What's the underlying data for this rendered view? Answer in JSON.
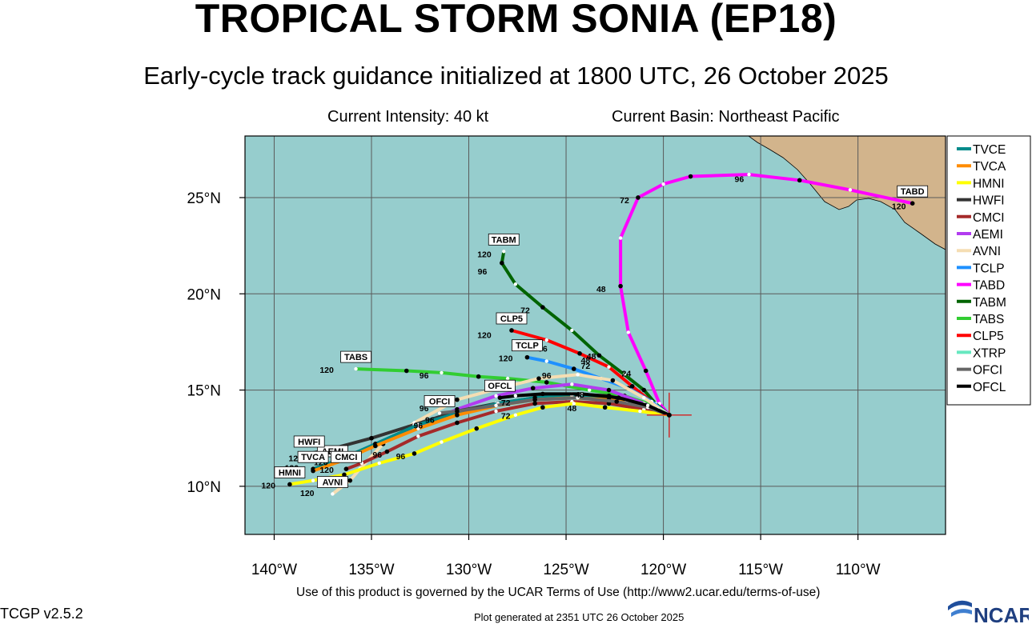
{
  "header": {
    "title": "TROPICAL STORM SONIA (EP18)",
    "subtitle": "Early-cycle track guidance initialized at 1800 UTC, 26 October 2025",
    "intensity": "Current Intensity: 40 kt",
    "basin": "Current Basin: Northeast Pacific"
  },
  "footer": {
    "terms": "Use of this product is governed by the UCAR Terms of Use (http://www2.ucar.edu/terms-of-use)",
    "version": "TCGP v2.5.2",
    "generated": "Plot generated at 2351 UTC   26 October 2025",
    "logo_text": "NCAR"
  },
  "map": {
    "lon_range": [
      -141.5,
      -105.5
    ],
    "lat_range": [
      7.5,
      28.2
    ],
    "lon_ticks": [
      -140,
      -135,
      -130,
      -125,
      -120,
      -115,
      -110
    ],
    "lon_tick_labels": [
      "140°W",
      "135°W",
      "130°W",
      "125°W",
      "120°W",
      "115°W",
      "110°W"
    ],
    "lat_ticks": [
      10,
      15,
      20,
      25
    ],
    "lat_tick_labels": [
      "10°N",
      "15°N",
      "20°N",
      "25°N"
    ],
    "ocean_color": "#96cdcd",
    "land_color": "#d2b48c",
    "current_position": [
      -119.7,
      13.7
    ]
  },
  "legend": [
    {
      "name": "TVCE",
      "color": "#008b8b"
    },
    {
      "name": "TVCA",
      "color": "#ff8c00"
    },
    {
      "name": "HMNI",
      "color": "#ffff00"
    },
    {
      "name": "HWFI",
      "color": "#333333"
    },
    {
      "name": "CMCI",
      "color": "#a52a2a"
    },
    {
      "name": "AEMI",
      "color": "#b23cf0"
    },
    {
      "name": "AVNI",
      "color": "#f5deb3"
    },
    {
      "name": "TCLP",
      "color": "#1e90ff"
    },
    {
      "name": "TABD",
      "color": "#ff00ff"
    },
    {
      "name": "TABM",
      "color": "#006400"
    },
    {
      "name": "TABS",
      "color": "#32cd32"
    },
    {
      "name": "CLP5",
      "color": "#ff0000"
    },
    {
      "name": "XTRP",
      "color": "#66e8c0"
    },
    {
      "name": "OFCI",
      "color": "#666666"
    },
    {
      "name": "OFCL",
      "color": "#000000"
    }
  ],
  "chart_data": {
    "type": "track",
    "x_label": "longitude",
    "y_label": "latitude",
    "series": [
      {
        "name": "TABD",
        "color": "#ff00ff",
        "tag": "TABD",
        "points": [
          [
            -119.7,
            13.7
          ],
          [
            -120.2,
            14.3
          ],
          [
            -120.9,
            16.0
          ],
          [
            -121.8,
            18.0
          ],
          [
            -122.2,
            20.4
          ],
          [
            -122.2,
            22.9
          ],
          [
            -121.3,
            25.0
          ],
          [
            -120.0,
            25.7
          ],
          [
            -118.6,
            26.1
          ],
          [
            -115.6,
            26.2
          ],
          [
            -113.0,
            25.9
          ],
          [
            -110.4,
            25.4
          ],
          [
            -107.2,
            24.7
          ]
        ],
        "tau_labels": [
          [
            "24",
            -121.9,
            15.7
          ],
          [
            "48",
            -123.2,
            20.1
          ],
          [
            "72",
            -122.0,
            24.7
          ],
          [
            "96",
            -116.1,
            25.8
          ],
          [
            "120",
            -107.9,
            24.4
          ]
        ]
      },
      {
        "name": "TABM",
        "color": "#006400",
        "tag": "TABM",
        "points": [
          [
            -119.7,
            13.7
          ],
          [
            -120.4,
            14.3
          ],
          [
            -121.0,
            15.0
          ],
          [
            -122.0,
            15.8
          ],
          [
            -123.3,
            16.8
          ],
          [
            -124.7,
            18.1
          ],
          [
            -126.2,
            19.3
          ],
          [
            -127.6,
            20.5
          ],
          [
            -128.3,
            21.6
          ],
          [
            -128.2,
            22.2
          ]
        ],
        "tau_labels": [
          [
            "48",
            -124.0,
            16.4
          ],
          [
            "72",
            -127.1,
            19.0
          ],
          [
            "96",
            -129.3,
            21.0
          ],
          [
            "120",
            -129.2,
            21.9
          ]
        ]
      },
      {
        "name": "TABS",
        "color": "#32cd32",
        "tag": "TABS",
        "points": [
          [
            -119.7,
            13.7
          ],
          [
            -120.5,
            14.2
          ],
          [
            -122.0,
            14.7
          ],
          [
            -123.8,
            15.0
          ],
          [
            -126.0,
            15.4
          ],
          [
            -128.0,
            15.6
          ],
          [
            -129.5,
            15.7
          ],
          [
            -131.4,
            15.9
          ],
          [
            -133.2,
            16.0
          ],
          [
            -135.8,
            16.1
          ]
        ],
        "tau_labels": [
          [
            "96",
            -132.3,
            15.6
          ],
          [
            "120",
            -137.3,
            15.9
          ]
        ]
      },
      {
        "name": "CLP5",
        "color": "#ff0000",
        "tag": "CLP5",
        "points": [
          [
            -119.7,
            13.7
          ],
          [
            -120.5,
            14.3
          ],
          [
            -121.6,
            15.2
          ],
          [
            -122.8,
            16.2
          ],
          [
            -124.3,
            16.9
          ],
          [
            -126.0,
            17.6
          ],
          [
            -127.8,
            18.1
          ]
        ],
        "tau_labels": [
          [
            "48",
            -123.7,
            16.6
          ],
          [
            "96",
            -126.2,
            17.0
          ],
          [
            "120",
            -129.2,
            17.7
          ]
        ]
      },
      {
        "name": "TCLP",
        "color": "#1e90ff",
        "tag": "TCLP",
        "points": [
          [
            -119.7,
            13.7
          ],
          [
            -120.6,
            14.4
          ],
          [
            -121.8,
            15.1
          ],
          [
            -123.2,
            15.6
          ],
          [
            -124.6,
            16.1
          ],
          [
            -126.0,
            16.5
          ],
          [
            -127.0,
            16.7
          ]
        ],
        "tau_labels": [
          [
            "72",
            -124.0,
            16.1
          ],
          [
            "120",
            -128.1,
            16.5
          ]
        ]
      },
      {
        "name": "AVNI",
        "color": "#f5deb3",
        "tag": "AVNI",
        "points": [
          [
            -119.7,
            13.7
          ],
          [
            -121.0,
            14.6
          ],
          [
            -122.6,
            15.5
          ],
          [
            -124.4,
            15.8
          ],
          [
            -126.4,
            15.6
          ],
          [
            -128.4,
            15.1
          ],
          [
            -130.6,
            14.5
          ],
          [
            -132.8,
            13.3
          ],
          [
            -134.4,
            12.2
          ],
          [
            -135.6,
            10.9
          ],
          [
            -136.1,
            10.3
          ],
          [
            -137.0,
            9.6
          ]
        ],
        "tau_labels": [
          [
            "96",
            -126.0,
            15.6
          ],
          [
            "120",
            -138.3,
            9.5
          ]
        ]
      },
      {
        "name": "AEMI",
        "color": "#b23cf0",
        "tag": "AEMI",
        "points": [
          [
            -119.7,
            13.7
          ],
          [
            -121.0,
            14.3
          ],
          [
            -122.8,
            15.0
          ],
          [
            -124.7,
            15.3
          ],
          [
            -126.7,
            15.1
          ],
          [
            -128.6,
            14.7
          ],
          [
            -130.6,
            14.0
          ],
          [
            -132.8,
            13.0
          ],
          [
            -134.8,
            12.2
          ],
          [
            -136.1,
            11.6
          ],
          [
            -137.0,
            11.2
          ]
        ],
        "tau_labels": [
          [
            "120",
            -137.6,
            11.1
          ]
        ]
      },
      {
        "name": "HWFI",
        "color": "#333333",
        "tag": "HWFI",
        "points": [
          [
            -119.7,
            13.7
          ],
          [
            -121.0,
            14.2
          ],
          [
            -122.8,
            14.7
          ],
          [
            -124.7,
            14.8
          ],
          [
            -126.6,
            14.6
          ],
          [
            -128.6,
            14.3
          ],
          [
            -130.6,
            13.9
          ],
          [
            -132.8,
            13.2
          ],
          [
            -135.0,
            12.5
          ],
          [
            -137.2,
            11.9
          ],
          [
            -138.2,
            11.7
          ]
        ],
        "tau_labels": [
          [
            "96",
            -132.6,
            13.0
          ],
          [
            "120",
            -138.9,
            11.3
          ]
        ]
      },
      {
        "name": "TVCE",
        "color": "#008b8b",
        "tag": "TVCA",
        "points": [
          [
            -119.7,
            13.7
          ],
          [
            -121.0,
            14.2
          ],
          [
            -122.8,
            14.5
          ],
          [
            -124.7,
            14.7
          ],
          [
            -126.6,
            14.6
          ],
          [
            -128.5,
            14.3
          ],
          [
            -130.6,
            13.8
          ],
          [
            -132.6,
            13.2
          ],
          [
            -134.8,
            12.2
          ],
          [
            -136.6,
            11.4
          ],
          [
            -138.0,
            10.9
          ]
        ],
        "tau_labels": [
          [
            "96",
            -132.0,
            13.3
          ],
          [
            "120",
            -139.1,
            10.8
          ]
        ]
      },
      {
        "name": "TVCA",
        "color": "#ff8c00",
        "tag": "",
        "points": [
          [
            -119.7,
            13.7
          ],
          [
            -121.0,
            14.2
          ],
          [
            -122.8,
            14.5
          ],
          [
            -124.7,
            14.6
          ],
          [
            -126.6,
            14.5
          ],
          [
            -128.5,
            14.2
          ],
          [
            -130.6,
            13.7
          ],
          [
            -132.6,
            13.0
          ],
          [
            -134.8,
            12.1
          ],
          [
            -136.6,
            11.3
          ],
          [
            -138.0,
            10.8
          ]
        ],
        "tau_labels": []
      },
      {
        "name": "CMCI",
        "color": "#a52a2a",
        "tag": "CMCI",
        "points": [
          [
            -119.7,
            13.7
          ],
          [
            -121.0,
            14.0
          ],
          [
            -122.8,
            14.3
          ],
          [
            -124.7,
            14.4
          ],
          [
            -126.6,
            14.3
          ],
          [
            -128.6,
            13.9
          ],
          [
            -130.6,
            13.3
          ],
          [
            -132.6,
            12.6
          ],
          [
            -134.2,
            11.8
          ],
          [
            -135.5,
            11.2
          ],
          [
            -136.3,
            10.9
          ]
        ],
        "tau_labels": [
          [
            "96",
            -134.7,
            11.5
          ],
          [
            "120",
            -137.3,
            10.7
          ]
        ]
      },
      {
        "name": "HMNI",
        "color": "#ffff00",
        "tag": "HMNI",
        "points": [
          [
            -119.7,
            13.7
          ],
          [
            -121.2,
            13.9
          ],
          [
            -123.0,
            14.1
          ],
          [
            -124.6,
            14.3
          ],
          [
            -126.2,
            14.1
          ],
          [
            -127.6,
            13.7
          ],
          [
            -129.6,
            13.0
          ],
          [
            -131.4,
            12.3
          ],
          [
            -132.8,
            11.7
          ],
          [
            -134.6,
            11.2
          ],
          [
            -136.4,
            10.6
          ],
          [
            -138.0,
            10.3
          ],
          [
            -139.2,
            10.1
          ]
        ],
        "tau_labels": [
          [
            "48",
            -124.7,
            13.9
          ],
          [
            "72",
            -128.1,
            13.5
          ],
          [
            "96",
            -133.5,
            11.4
          ],
          [
            "120",
            -140.3,
            9.9
          ]
        ]
      },
      {
        "name": "XTRP",
        "color": "#66e8c0",
        "tag": "",
        "points": [
          [
            -119.7,
            13.7
          ],
          [
            -120.3,
            14.0
          ],
          [
            -121.0,
            14.2
          ],
          [
            -121.9,
            14.4
          ]
        ],
        "tau_labels": []
      },
      {
        "name": "OFCI",
        "color": "#666666",
        "tag": "OFCI",
        "points": [
          [
            -119.7,
            13.7
          ],
          [
            -120.8,
            14.1
          ],
          [
            -122.4,
            14.4
          ],
          [
            -124.4,
            14.6
          ],
          [
            -126.6,
            14.5
          ],
          [
            -128.6,
            14.2
          ],
          [
            -130.6,
            13.9
          ],
          [
            -131.5,
            13.8
          ]
        ],
        "tau_labels": [
          [
            "96",
            -132.3,
            13.9
          ]
        ]
      },
      {
        "name": "OFCL",
        "color": "#000000",
        "tag": "OFCL",
        "points": [
          [
            -119.7,
            13.7
          ],
          [
            -120.8,
            14.2
          ],
          [
            -122.3,
            14.6
          ],
          [
            -124.2,
            14.8
          ],
          [
            -126.2,
            14.8
          ],
          [
            -127.6,
            14.7
          ],
          [
            -128.4,
            14.6
          ]
        ],
        "tau_labels": [
          [
            "48",
            -124.3,
            14.6
          ],
          [
            "72",
            -128.1,
            14.2
          ]
        ]
      }
    ]
  }
}
